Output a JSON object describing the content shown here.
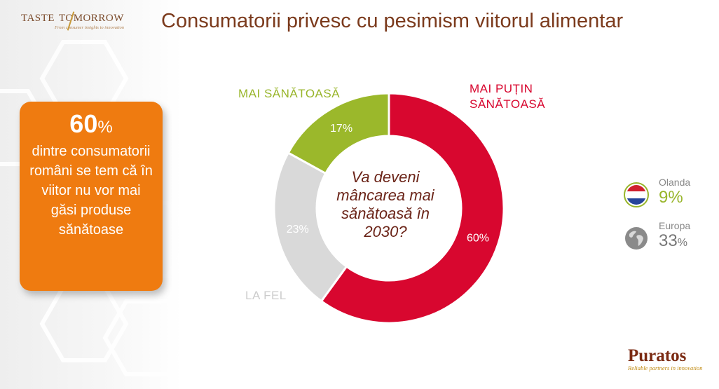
{
  "header": {
    "title": "Consumatorii privesc cu pesimism viitorul alimentar",
    "logo_name_left": "TASTE",
    "logo_name_right": "TOMORROW",
    "logo_tagline": "From consumer insights to innovation"
  },
  "highlight": {
    "value": "60",
    "unit": "%",
    "text": "dintre consumatorii români se tem că în viitor nu vor mai găsi produse sănătoase"
  },
  "chart_data": {
    "type": "pie",
    "center_question": "Va deveni mâncarea mai sănătoasă în 2030?",
    "slices": [
      {
        "label": "MAI PUȚIN SĂNĂTOASĂ",
        "value": 60,
        "value_label": "60%",
        "color": "#d8072f"
      },
      {
        "label": "LA FEL",
        "value": 23,
        "value_label": "23%",
        "color": "#d9d9d9"
      },
      {
        "label": "MAI SĂNĂTOASĂ",
        "value": 17,
        "value_label": "17%",
        "color": "#9bb82b"
      }
    ]
  },
  "comparison": [
    {
      "country": "Olanda",
      "value": "9",
      "unit": "%",
      "icon": "netherlands-flag-icon",
      "color": "#98b52a"
    },
    {
      "country": "Europa",
      "value": "33",
      "unit": "%",
      "icon": "globe-icon",
      "color": "#777777"
    }
  ],
  "footer": {
    "brand": "Puratos",
    "tagline": "Reliable partners in innovation"
  }
}
